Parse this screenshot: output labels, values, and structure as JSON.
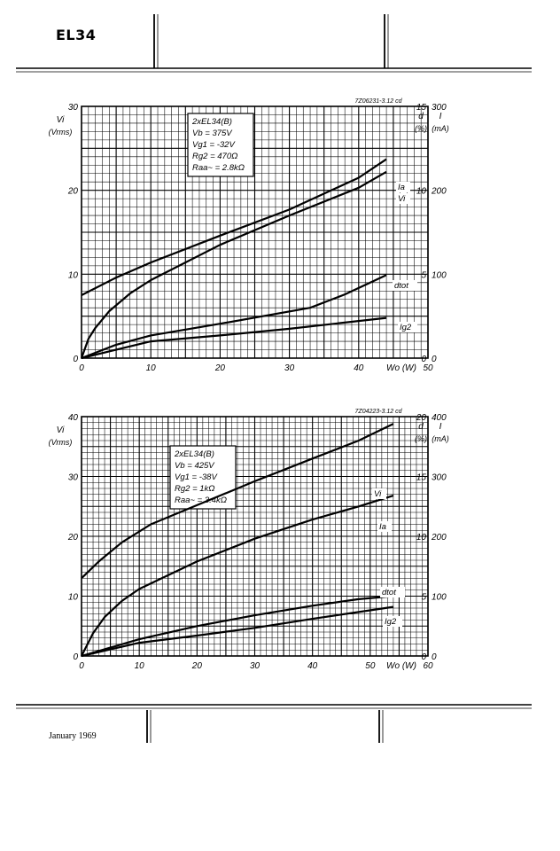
{
  "header": {
    "type_label": "EL34"
  },
  "footer": {
    "date": "January 1969"
  },
  "chart_data": [
    {
      "type": "line",
      "code": "7Z06231-3.12 cd",
      "conditions": [
        "2xEL34(B)",
        "Vb = 375V",
        "Vg1 = -32V",
        "Rg2 = 470Ω",
        "Raa~ = 2.8kΩ"
      ],
      "xlabel": "Wo (W)",
      "xlim": [
        0,
        50
      ],
      "xticks": [
        "0",
        "10",
        "20",
        "30",
        "40",
        "50"
      ],
      "left_axis": {
        "label": "Vi",
        "unit": "(Vrms)",
        "lim": [
          0,
          30
        ],
        "ticks": [
          "0",
          "10",
          "20",
          "30"
        ]
      },
      "right_axis_d": {
        "label": "d",
        "unit": "(%)",
        "lim": [
          0,
          15
        ],
        "ticks": [
          "0",
          "5",
          "10",
          "15"
        ]
      },
      "right_axis_i": {
        "label": "I",
        "unit": "(mA)",
        "lim": [
          0,
          300
        ],
        "ticks": [
          "0",
          "100",
          "200",
          "300"
        ]
      },
      "series": [
        {
          "name": "Ia",
          "axis": "i",
          "x": [
            0,
            5,
            10,
            20,
            30,
            40,
            44
          ],
          "y": [
            75,
            96,
            114,
            146,
            177,
            215,
            237
          ]
        },
        {
          "name": "Vi",
          "axis": "left",
          "x": [
            0,
            1,
            2,
            4,
            7,
            10,
            20,
            30,
            40,
            44
          ],
          "y": [
            0,
            2.3,
            3.6,
            5.6,
            7.7,
            9.3,
            13.5,
            17,
            20.3,
            22.2
          ]
        },
        {
          "name": "dtot",
          "axis": "d",
          "x": [
            0,
            5,
            10,
            20,
            33,
            38,
            44
          ],
          "y": [
            0,
            0.8,
            1.35,
            2.05,
            3.0,
            3.8,
            4.95
          ]
        },
        {
          "name": "Ig2",
          "axis": "i",
          "x": [
            0,
            10,
            20,
            30,
            44
          ],
          "y": [
            0,
            20,
            27,
            35,
            48
          ]
        }
      ]
    },
    {
      "type": "line",
      "code": "7Z04223-3.12 cd",
      "conditions": [
        "2xEL34(B)",
        "Vb = 425V",
        "Vg1 = -38V",
        "Rg2 = 1kΩ",
        "Raa~ = 3.4kΩ"
      ],
      "xlabel": "Wo (W)",
      "xlim": [
        0,
        60
      ],
      "xticks": [
        "0",
        "10",
        "20",
        "30",
        "40",
        "50",
        "60"
      ],
      "left_axis": {
        "label": "Vi",
        "unit": "(Vrms)",
        "lim": [
          0,
          40
        ],
        "ticks": [
          "0",
          "10",
          "20",
          "30",
          "40"
        ]
      },
      "right_axis_d": {
        "label": "d",
        "unit": "(%)",
        "lim": [
          0,
          20
        ],
        "ticks": [
          "0",
          "5",
          "10",
          "15",
          "20"
        ]
      },
      "right_axis_i": {
        "label": "I",
        "unit": "(mA)",
        "lim": [
          0,
          400
        ],
        "ticks": [
          "0",
          "100",
          "200",
          "300",
          "400"
        ]
      },
      "series": [
        {
          "name": "Vi",
          "axis": "left",
          "x": [
            0,
            2,
            4,
            7,
            10,
            20,
            30,
            40,
            48,
            54
          ],
          "y": [
            0,
            3.8,
            6.5,
            9.2,
            11.2,
            15.8,
            19.6,
            22.8,
            25,
            26.8
          ]
        },
        {
          "name": "Ia",
          "axis": "i",
          "x": [
            0,
            3,
            7,
            12,
            20,
            30,
            40,
            48,
            54
          ],
          "y": [
            130,
            158,
            190,
            220,
            252,
            292,
            330,
            360,
            388
          ]
        },
        {
          "name": "dtot",
          "axis": "d",
          "x": [
            0,
            10,
            20,
            30,
            40,
            48,
            54
          ],
          "y": [
            0,
            1.4,
            2.5,
            3.4,
            4.2,
            4.75,
            5.0
          ]
        },
        {
          "name": "Ig2",
          "axis": "i",
          "x": [
            0,
            10,
            20,
            30,
            40,
            54
          ],
          "y": [
            0,
            22,
            34,
            47,
            62,
            82
          ]
        }
      ]
    }
  ]
}
